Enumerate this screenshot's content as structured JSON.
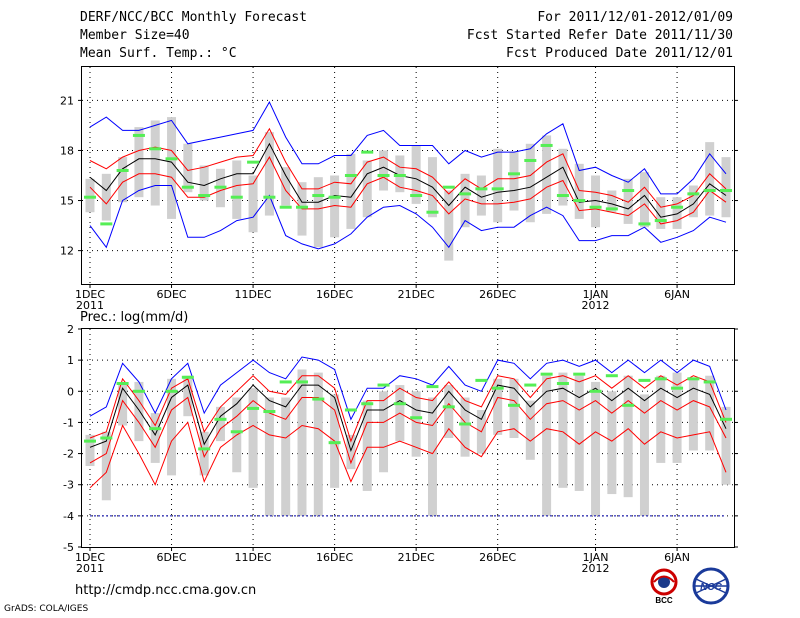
{
  "header": {
    "title": "DERF/NCC/BCC Monthly Forecast",
    "member_size": "Member Size=40",
    "variable": "Mean Surf. Temp.: °C",
    "forecast_range": "For 2011/12/01-2012/01/09",
    "started_refer": "Fcst Started Refer Date 2011/11/30",
    "produced": "Fcst Produced Date 2011/12/01"
  },
  "footer": {
    "url": "http://cmdp.ncc.cma.gov.cn",
    "credit": "GrADS: COLA/IGES",
    "logo_left": "BCC",
    "logo_right": "NCC"
  },
  "colors": {
    "ensemble_mean": "#000000",
    "spread": "#ff0000",
    "envelope": "#0000ff",
    "box": "#d0d0d0",
    "member_bar": "#55ee55",
    "missing_line": "#0000aa"
  },
  "chart_data": [
    {
      "name": "temperature",
      "type": "line",
      "title": "Mean Surf. Temp.: °C",
      "ylabel": "°C",
      "days": 40,
      "ylim": [
        10,
        23
      ],
      "yticks": [
        12,
        15,
        18,
        21
      ],
      "xticks": [
        {
          "day": 1,
          "label": "1DEC",
          "sub": "2011"
        },
        {
          "day": 6,
          "label": "6DEC"
        },
        {
          "day": 11,
          "label": "11DEC"
        },
        {
          "day": 16,
          "label": "16DEC"
        },
        {
          "day": 21,
          "label": "21DEC"
        },
        {
          "day": 26,
          "label": "26DEC"
        },
        {
          "day": 32,
          "label": "1JAN",
          "sub": "2012"
        },
        {
          "day": 37,
          "label": "6JAN"
        }
      ],
      "series": [
        {
          "name": "max",
          "color": "envelope",
          "values": [
            19.4,
            20.0,
            19.2,
            19.2,
            19.5,
            19.8,
            18.4,
            18.6,
            18.8,
            19.0,
            19.2,
            20.9,
            18.8,
            17.2,
            17.2,
            17.7,
            17.7,
            18.9,
            19.2,
            18.3,
            18.3,
            18.3,
            17.2,
            18.0,
            17.6,
            17.9,
            17.9,
            18.1,
            19.0,
            19.6,
            16.8,
            17.0,
            16.5,
            16.1,
            16.9,
            15.4,
            15.4,
            16.3,
            17.8,
            16.6
          ]
        },
        {
          "name": "upper",
          "color": "spread",
          "values": [
            17.4,
            16.9,
            17.6,
            18.0,
            18.2,
            18.0,
            16.8,
            17.0,
            17.3,
            17.6,
            17.7,
            19.3,
            17.3,
            15.7,
            15.7,
            16.1,
            16.0,
            17.3,
            17.6,
            17.0,
            16.9,
            16.4,
            15.4,
            16.3,
            15.7,
            16.3,
            16.3,
            16.5,
            17.3,
            17.8,
            15.6,
            15.5,
            15.3,
            14.9,
            15.8,
            14.6,
            14.8,
            15.3,
            16.6,
            15.7
          ]
        },
        {
          "name": "mean",
          "color": "ensemble_mean",
          "values": [
            16.4,
            15.6,
            16.9,
            17.5,
            17.5,
            17.3,
            16.1,
            15.9,
            16.3,
            16.6,
            16.6,
            18.4,
            16.5,
            14.9,
            14.9,
            15.3,
            15.2,
            16.6,
            17.0,
            16.5,
            16.3,
            15.8,
            14.7,
            15.8,
            15.2,
            15.5,
            15.6,
            15.8,
            16.4,
            17.0,
            14.9,
            15.0,
            14.8,
            14.5,
            15.3,
            14.0,
            14.2,
            14.8,
            16.0,
            15.3
          ]
        },
        {
          "name": "lower",
          "color": "spread",
          "values": [
            15.8,
            14.8,
            16.1,
            16.6,
            16.6,
            16.4,
            15.2,
            15.2,
            15.6,
            15.9,
            16.0,
            17.6,
            15.6,
            14.5,
            14.5,
            14.7,
            14.6,
            16.0,
            16.4,
            15.8,
            15.6,
            15.3,
            14.2,
            15.1,
            14.8,
            14.8,
            14.9,
            15.1,
            15.8,
            16.2,
            14.4,
            14.5,
            14.3,
            14.1,
            14.8,
            13.6,
            13.8,
            14.3,
            15.6,
            14.9
          ]
        },
        {
          "name": "min",
          "color": "envelope",
          "values": [
            13.5,
            12.2,
            15.0,
            15.6,
            15.9,
            15.9,
            12.8,
            12.8,
            13.2,
            13.8,
            14.0,
            15.3,
            12.9,
            12.4,
            12.1,
            12.4,
            13.0,
            14.0,
            14.6,
            14.7,
            14.2,
            13.4,
            12.2,
            13.8,
            13.2,
            13.4,
            13.4,
            14.1,
            14.6,
            14.1,
            12.6,
            12.6,
            12.9,
            12.9,
            13.4,
            12.5,
            12.8,
            13.2,
            14.0,
            13.7
          ]
        },
        {
          "name": "box_high",
          "color": "box",
          "values": [
            16.3,
            16.6,
            17.6,
            19.4,
            19.8,
            20.0,
            18.4,
            17.1,
            16.9,
            17.4,
            16.5,
            19.1,
            17.0,
            16.1,
            16.4,
            16.5,
            17.8,
            17.4,
            18.0,
            17.7,
            18.3,
            17.6,
            15.6,
            16.6,
            16.5,
            18.1,
            17.9,
            18.4,
            18.9,
            18.1,
            17.2,
            16.5,
            15.6,
            16.3,
            16.7,
            15.2,
            15.2,
            15.9,
            18.5,
            17.6
          ]
        },
        {
          "name": "box_low",
          "color": "box",
          "values": [
            14.3,
            13.8,
            14.9,
            15.2,
            14.7,
            13.9,
            15.5,
            15.0,
            14.6,
            13.9,
            13.1,
            14.1,
            14.7,
            12.9,
            12.2,
            12.8,
            13.3,
            14.0,
            15.6,
            15.5,
            14.8,
            14.0,
            11.4,
            13.4,
            14.1,
            13.7,
            14.4,
            13.7,
            14.2,
            14.7,
            13.9,
            13.4,
            14.3,
            13.6,
            13.4,
            13.3,
            13.3,
            14.0,
            14.1,
            14.0
          ]
        },
        {
          "name": "member_mark",
          "color": "member_bar",
          "values": [
            15.2,
            13.6,
            16.8,
            18.9,
            18.1,
            17.5,
            15.8,
            15.3,
            15.8,
            15.2,
            17.3,
            15.2,
            14.6,
            14.6,
            15.3,
            15.2,
            16.5,
            17.9,
            16.5,
            16.5,
            15.3,
            14.3,
            15.8,
            15.4,
            15.7,
            15.7,
            16.6,
            17.4,
            18.3,
            15.3,
            15.0,
            14.6,
            14.5,
            15.6,
            13.6,
            13.8,
            14.6,
            15.4,
            15.6,
            15.6
          ]
        }
      ]
    },
    {
      "name": "precipitation",
      "type": "line",
      "title": "Prec.: log(mm/d)",
      "ylabel": "log(mm/d)",
      "days": 40,
      "ylim": [
        -5,
        2
      ],
      "yticks": [
        -5,
        -4,
        -3,
        -2,
        -1,
        0,
        1,
        2
      ],
      "xticks": [
        {
          "day": 1,
          "label": "1DEC",
          "sub": "2011"
        },
        {
          "day": 6,
          "label": "6DEC"
        },
        {
          "day": 11,
          "label": "11DEC"
        },
        {
          "day": 16,
          "label": "16DEC"
        },
        {
          "day": 21,
          "label": "21DEC"
        },
        {
          "day": 26,
          "label": "26DEC"
        },
        {
          "day": 32,
          "label": "1JAN",
          "sub": "2012"
        },
        {
          "day": 37,
          "label": "6JAN"
        }
      ],
      "missing_level": -4,
      "series": [
        {
          "name": "max",
          "color": "envelope",
          "values": [
            -0.8,
            -0.5,
            0.9,
            0.3,
            -0.7,
            0.4,
            0.9,
            -0.7,
            0.2,
            0.6,
            1.0,
            0.6,
            0.4,
            1.1,
            1.0,
            0.7,
            -0.9,
            0.1,
            0.1,
            0.5,
            0.4,
            0.2,
            0.8,
            0.2,
            0.0,
            1.0,
            0.9,
            0.4,
            0.9,
            1.0,
            0.8,
            1.0,
            0.6,
            1.0,
            0.6,
            1.0,
            0.6,
            1.0,
            0.8,
            -0.6
          ]
        },
        {
          "name": "upper",
          "color": "spread",
          "values": [
            -1.5,
            -1.3,
            0.4,
            -0.3,
            -1.1,
            0.1,
            0.4,
            -1.3,
            -0.5,
            0.0,
            0.5,
            0.0,
            -0.1,
            0.5,
            0.5,
            0.1,
            -1.6,
            -0.3,
            -0.3,
            0.1,
            -0.2,
            -0.3,
            0.3,
            -0.3,
            -0.5,
            0.5,
            0.4,
            -0.2,
            0.4,
            0.5,
            0.3,
            0.5,
            0.1,
            0.5,
            0.1,
            0.5,
            0.2,
            0.5,
            0.3,
            -1.0
          ]
        },
        {
          "name": "mean",
          "color": "ensemble_mean",
          "values": [
            -1.8,
            -1.6,
            0.1,
            -0.6,
            -1.4,
            -0.2,
            0.2,
            -1.7,
            -0.8,
            -0.4,
            0.2,
            -0.3,
            -0.5,
            0.2,
            0.2,
            -0.2,
            -1.9,
            -0.6,
            -0.6,
            -0.3,
            -0.6,
            -0.7,
            0.0,
            -0.6,
            -0.9,
            0.2,
            0.1,
            -0.5,
            0.0,
            0.1,
            -0.2,
            0.1,
            -0.3,
            0.1,
            -0.3,
            0.1,
            -0.2,
            0.1,
            -0.1,
            -1.2
          ]
        },
        {
          "name": "lower",
          "color": "spread",
          "values": [
            -2.3,
            -2.0,
            -0.3,
            -1.0,
            -1.8,
            -0.6,
            -0.2,
            -2.1,
            -1.2,
            -0.8,
            -0.3,
            -0.7,
            -0.9,
            -0.2,
            -0.2,
            -0.6,
            -2.3,
            -1.0,
            -1.0,
            -0.7,
            -1.0,
            -1.1,
            -0.4,
            -1.0,
            -1.3,
            -0.2,
            -0.3,
            -0.9,
            -0.4,
            -0.3,
            -0.6,
            -0.3,
            -0.7,
            -0.3,
            -0.7,
            -0.3,
            -0.6,
            -0.3,
            -0.5,
            -1.5
          ]
        },
        {
          "name": "min",
          "color": "spread",
          "values": [
            -3.1,
            -2.6,
            -1.1,
            -2.0,
            -3.0,
            -1.6,
            -1.0,
            -2.9,
            -1.8,
            -1.4,
            -1.1,
            -1.4,
            -1.5,
            -1.1,
            -1.2,
            -1.6,
            -2.9,
            -1.8,
            -1.8,
            -1.6,
            -1.8,
            -2.0,
            -1.2,
            -1.8,
            -2.1,
            -1.3,
            -1.2,
            -1.6,
            -1.2,
            -1.3,
            -1.7,
            -1.3,
            -1.6,
            -1.2,
            -1.7,
            -1.3,
            -1.5,
            -1.4,
            -1.3,
            -2.6
          ]
        },
        {
          "name": "box_high",
          "color": "box",
          "values": [
            -1.4,
            -1.3,
            0.3,
            0.3,
            -0.7,
            0.4,
            0.5,
            -1.3,
            -0.5,
            -0.2,
            0.1,
            -0.2,
            -0.2,
            0.7,
            0.6,
            -0.1,
            -1.4,
            -0.3,
            0.0,
            0.2,
            0.0,
            -0.2,
            0.2,
            -0.2,
            -0.6,
            0.4,
            0.4,
            -0.3,
            0.5,
            0.6,
            0.5,
            0.3,
            0.0,
            0.5,
            -0.1,
            0.5,
            0.6,
            0.4,
            0.5,
            -0.5
          ]
        },
        {
          "name": "box_low",
          "color": "box",
          "values": [
            -2.4,
            -3.5,
            -1.1,
            -1.6,
            -2.3,
            -2.7,
            -0.8,
            -2.7,
            -1.6,
            -2.6,
            -3.1,
            -4.0,
            -4.0,
            -4.0,
            -4.0,
            -3.1,
            -2.5,
            -3.2,
            -2.6,
            -1.6,
            -2.1,
            -4.0,
            -1.5,
            -2.1,
            -2.0,
            -1.4,
            -1.5,
            -2.2,
            -4.0,
            -3.1,
            -3.2,
            -4.0,
            -3.3,
            -3.4,
            -4.0,
            -2.3,
            -2.3,
            -1.9,
            -1.9,
            -3.0
          ]
        },
        {
          "name": "member_mark",
          "color": "member_bar",
          "values": [
            -1.6,
            -1.5,
            0.25,
            0.0,
            -1.2,
            0.0,
            0.45,
            -1.85,
            -0.9,
            -1.3,
            -0.55,
            -0.65,
            0.3,
            0.3,
            -0.25,
            -1.65,
            -0.6,
            -0.4,
            0.2,
            -0.4,
            -0.85,
            0.15,
            -0.5,
            -1.05,
            0.35,
            0.1,
            -0.45,
            0.2,
            0.55,
            0.25,
            0.55,
            0.0,
            0.5,
            -0.45,
            0.35,
            0.4,
            0.1,
            0.4,
            0.3,
            -0.9
          ]
        }
      ]
    }
  ]
}
